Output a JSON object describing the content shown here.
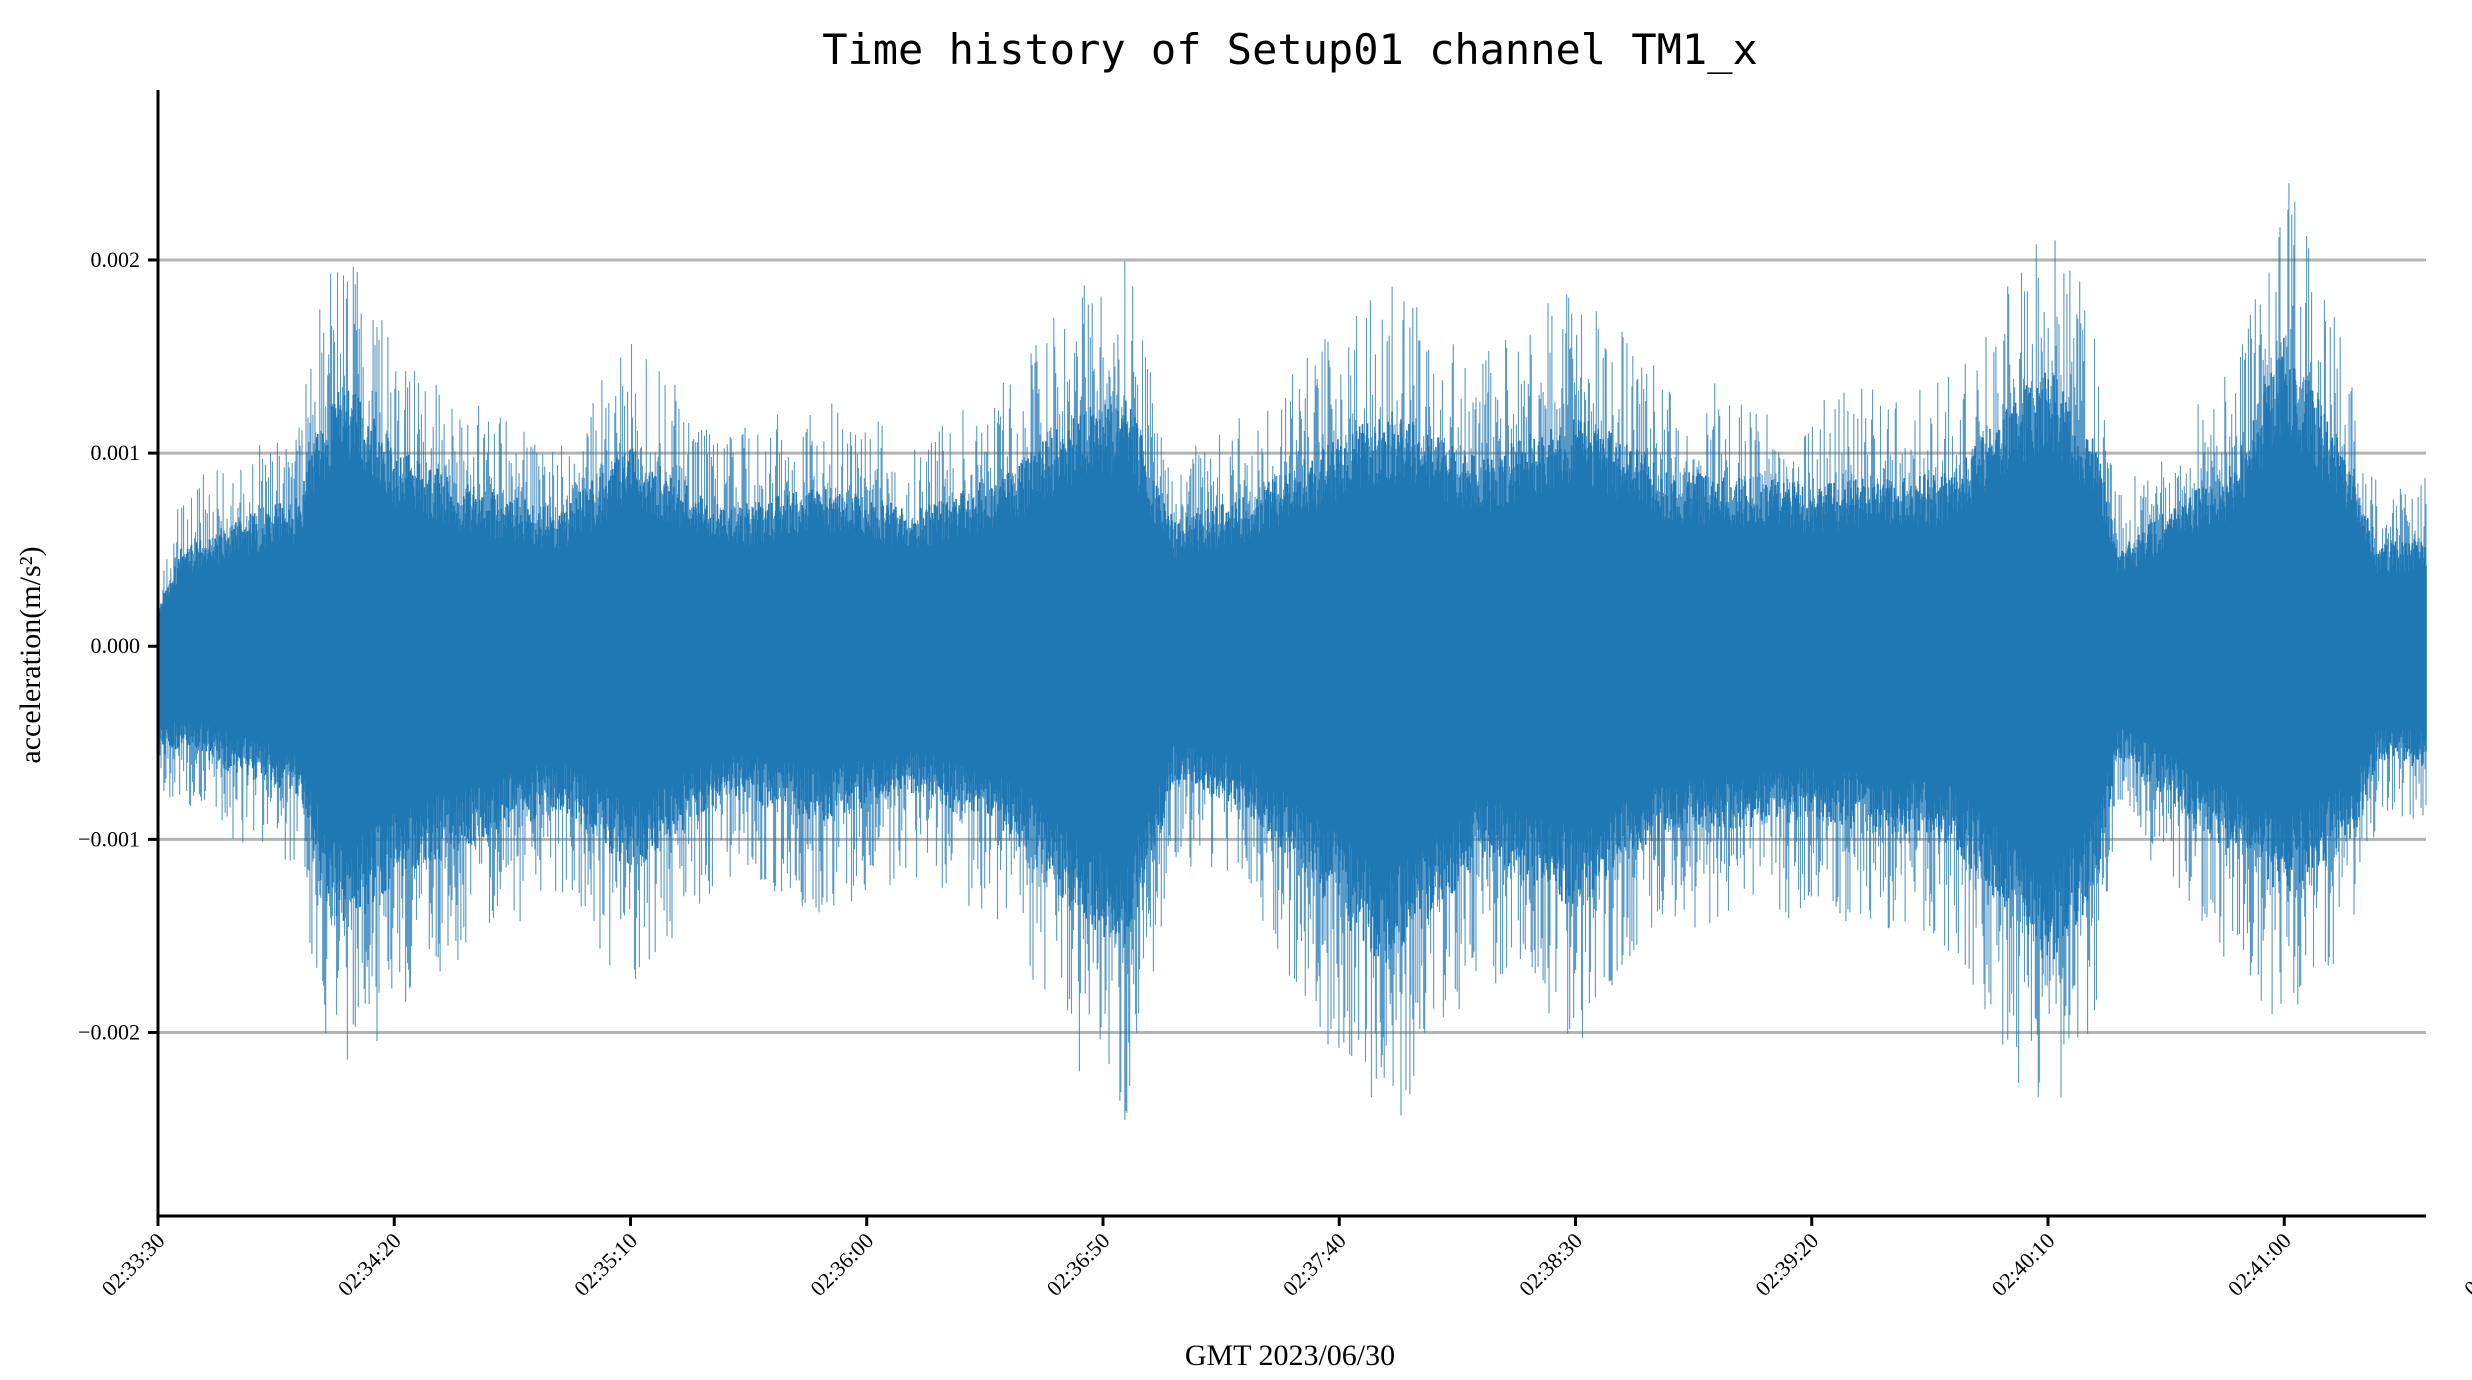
{
  "chart_data": {
    "type": "line",
    "title": "Time history of Setup01 channel TM1_x",
    "xlabel": "GMT  2023/06/30",
    "ylabel": "acceleration(m/s²)",
    "x_range": [
      "02:33:30",
      "02:41:00"
    ],
    "x_ticks": [
      "02:33:30",
      "02:34:20",
      "02:35:10",
      "02:36:00",
      "02:36:50",
      "02:37:40",
      "02:38:30",
      "02:39:20",
      "02:40:10",
      "02:41:00",
      "02:41:00"
    ],
    "y_ticks": [
      0.002,
      0.001,
      0.0,
      -0.001,
      -0.002
    ],
    "y_tick_labels": [
      "0.002",
      "0.001",
      "0.000",
      "−0.001",
      "−0.002"
    ],
    "ylim": [
      -0.00295,
      0.00288
    ],
    "grid": "horizontal",
    "series": [
      {
        "color": "#1f77b4",
        "note_envelope": "approximate peak amplitude by time",
        "envelope": [
          {
            "t": "02:33:30",
            "upper": 0.0003,
            "lower": -0.0009
          },
          {
            "t": "02:33:35",
            "upper": 0.0008,
            "lower": -0.0008
          },
          {
            "t": "02:33:45",
            "upper": 0.001,
            "lower": -0.001
          },
          {
            "t": "02:34:00",
            "upper": 0.0012,
            "lower": -0.0012
          },
          {
            "t": "02:34:05",
            "upper": 0.0019,
            "lower": -0.002
          },
          {
            "t": "02:34:10",
            "upper": 0.0021,
            "lower": -0.0023
          },
          {
            "t": "02:34:20",
            "upper": 0.0016,
            "lower": -0.0019
          },
          {
            "t": "02:34:35",
            "upper": 0.0013,
            "lower": -0.0016
          },
          {
            "t": "02:34:55",
            "upper": 0.0011,
            "lower": -0.0013
          },
          {
            "t": "02:35:10",
            "upper": 0.0016,
            "lower": -0.0018
          },
          {
            "t": "02:35:30",
            "upper": 0.0011,
            "lower": -0.0012
          },
          {
            "t": "02:35:50",
            "upper": 0.0013,
            "lower": -0.0014
          },
          {
            "t": "02:36:10",
            "upper": 0.0011,
            "lower": -0.0012
          },
          {
            "t": "02:36:30",
            "upper": 0.0014,
            "lower": -0.0015
          },
          {
            "t": "02:36:45",
            "upper": 0.0019,
            "lower": -0.0022
          },
          {
            "t": "02:36:55",
            "upper": 0.002,
            "lower": -0.0025
          },
          {
            "t": "02:37:05",
            "upper": 0.001,
            "lower": -0.0011
          },
          {
            "t": "02:37:20",
            "upper": 0.0012,
            "lower": -0.0013
          },
          {
            "t": "02:37:50",
            "upper": 0.0019,
            "lower": -0.0026
          },
          {
            "t": "02:38:10",
            "upper": 0.0015,
            "lower": -0.0017
          },
          {
            "t": "02:38:30",
            "upper": 0.0019,
            "lower": -0.0021
          },
          {
            "t": "02:38:50",
            "upper": 0.0014,
            "lower": -0.0015
          },
          {
            "t": "02:39:20",
            "upper": 0.0013,
            "lower": -0.0014
          },
          {
            "t": "02:39:50",
            "upper": 0.0014,
            "lower": -0.0016
          },
          {
            "t": "02:40:10",
            "upper": 0.0023,
            "lower": -0.0026
          },
          {
            "t": "02:40:20",
            "upper": 0.0017,
            "lower": -0.002
          },
          {
            "t": "02:40:25",
            "upper": 0.0008,
            "lower": -0.0009
          },
          {
            "t": "02:40:50",
            "upper": 0.0015,
            "lower": -0.0017
          },
          {
            "t": "02:41:00",
            "upper": 0.0025,
            "lower": -0.002
          },
          {
            "t": "02:41:15",
            "upper": 0.0014,
            "lower": -0.0015
          },
          {
            "t": "02:41:20",
            "upper": 0.0008,
            "lower": -0.0009
          },
          {
            "t": "02:41:30",
            "upper": 0.0009,
            "lower": -0.001
          }
        ]
      }
    ]
  }
}
